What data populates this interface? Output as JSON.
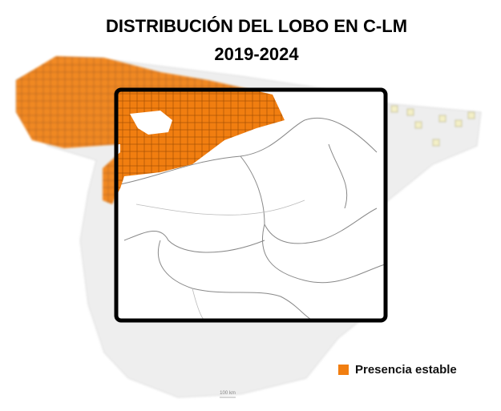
{
  "title": [
    "DISTRIBUCIÓN DEL LOBO EN C-LM",
    "2019-2024"
  ],
  "legend": {
    "label": "Presencia estable",
    "color": "#f17e10"
  },
  "scale_label": "100 km"
}
